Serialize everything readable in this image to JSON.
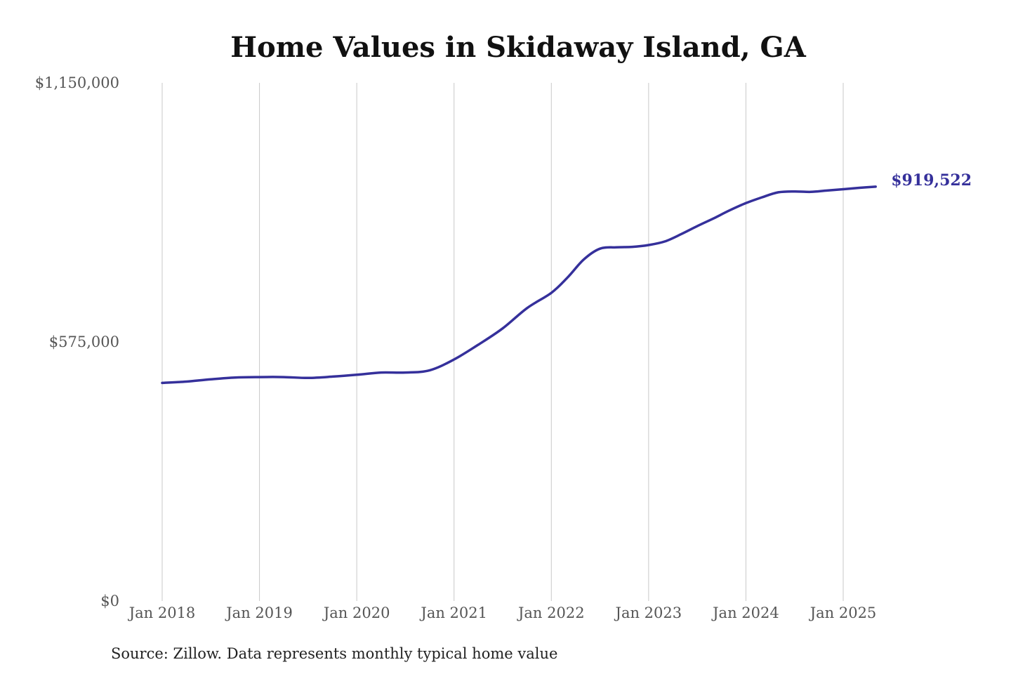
{
  "colors": {
    "series": "#35309b",
    "gridline": "#c8c8c8",
    "title": "#111111",
    "tick": "#555555"
  },
  "chart_data": {
    "type": "line",
    "title": "Home Values in Skidaway Island, GA",
    "source": "Source: Zillow. Data represents monthly typical home value",
    "xlabel": "",
    "ylabel": "",
    "ylim": [
      0,
      1150000
    ],
    "xlim": [
      "2018-01",
      "2025-05"
    ],
    "grid": {
      "vertical": true,
      "horizontal": false
    },
    "yticks": [
      {
        "value": 0,
        "label": "$0"
      },
      {
        "value": 575000,
        "label": "$575,000"
      },
      {
        "value": 1150000,
        "label": "$1,150,000"
      }
    ],
    "xticks": [
      {
        "date": "2018-01",
        "label": "Jan 2018"
      },
      {
        "date": "2019-01",
        "label": "Jan 2019"
      },
      {
        "date": "2020-01",
        "label": "Jan 2020"
      },
      {
        "date": "2021-01",
        "label": "Jan 2021"
      },
      {
        "date": "2022-01",
        "label": "Jan 2022"
      },
      {
        "date": "2023-01",
        "label": "Jan 2023"
      },
      {
        "date": "2024-01",
        "label": "Jan 2024"
      },
      {
        "date": "2025-01",
        "label": "Jan 2025"
      }
    ],
    "end_label": "$919,522",
    "series": [
      {
        "x": [
          "2018-01",
          "2018-04",
          "2018-07",
          "2018-10",
          "2019-01",
          "2019-04",
          "2019-07",
          "2019-10",
          "2020-01",
          "2020-04",
          "2020-07",
          "2020-10",
          "2021-01",
          "2021-04",
          "2021-07",
          "2021-10",
          "2022-01",
          "2022-03",
          "2022-05",
          "2022-07",
          "2022-09",
          "2022-11",
          "2023-01",
          "2023-03",
          "2023-05",
          "2023-07",
          "2023-09",
          "2023-11",
          "2024-01",
          "2024-03",
          "2024-05",
          "2024-07",
          "2024-09",
          "2024-11",
          "2025-01",
          "2025-03",
          "2025-05"
        ],
        "y": [
          484000,
          487000,
          492000,
          496000,
          497000,
          497000,
          495000,
          498000,
          502000,
          507000,
          507000,
          512000,
          536000,
          569000,
          605000,
          650000,
          684000,
          718000,
          758000,
          782000,
          785000,
          786000,
          790000,
          798000,
          814000,
          832000,
          849000,
          867000,
          883000,
          896000,
          907000,
          909000,
          908000,
          911000,
          914000,
          917000,
          919522
        ]
      }
    ]
  }
}
